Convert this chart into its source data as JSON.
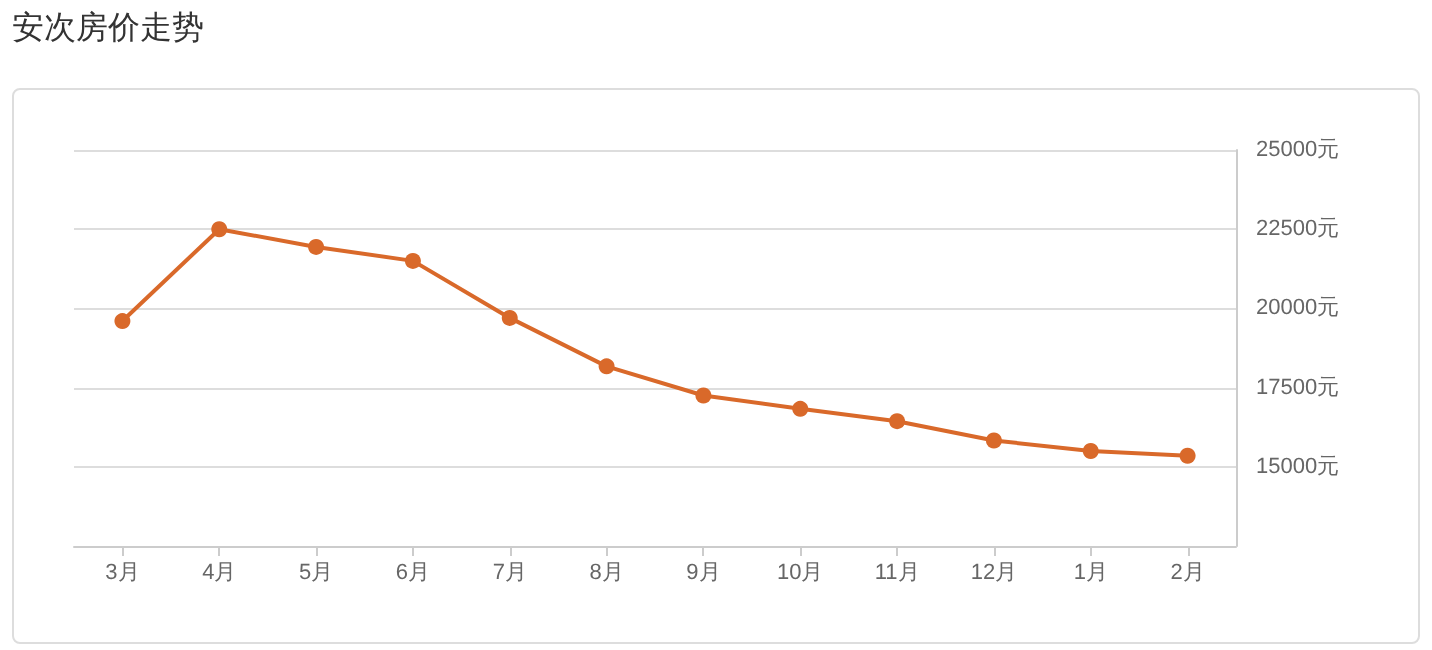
{
  "chart_data": {
    "type": "line",
    "title": "安次房价走势",
    "categories": [
      "3月",
      "4月",
      "5月",
      "6月",
      "7月",
      "8月",
      "9月",
      "10月",
      "11月",
      "12月",
      "1月",
      "2月"
    ],
    "series": [
      {
        "color": "#d9692a",
        "values": [
          19600,
          22500,
          21940,
          21500,
          19700,
          18170,
          17250,
          16830,
          16440,
          15830,
          15500,
          15350
        ]
      }
    ],
    "ylim": [
      12500,
      25000
    ],
    "yticks": [
      {
        "value": 12500,
        "label": null
      },
      {
        "value": 15000,
        "label": "15000元"
      },
      {
        "value": 17500,
        "label": "17500元"
      },
      {
        "value": 20000,
        "label": "20000元"
      },
      {
        "value": 22500,
        "label": "22500元"
      },
      {
        "value": 25000,
        "label": "25000元"
      }
    ],
    "grid": "y",
    "marker": "circle",
    "line_style": "solid"
  }
}
